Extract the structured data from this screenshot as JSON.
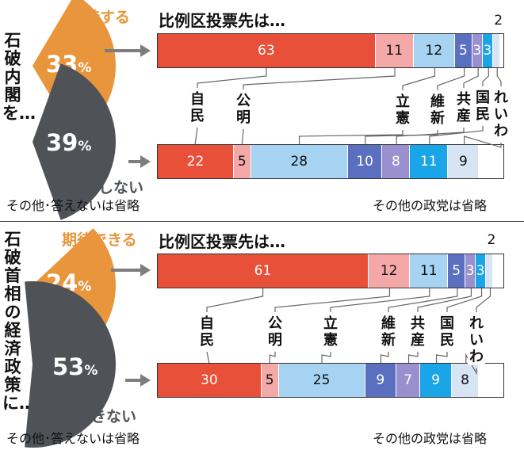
{
  "colors": {
    "support_orange": "#e8953c",
    "nonsupport_gray": "#4f5257",
    "arrow_gray": "#7d7d7d",
    "ldp": "#e8503a",
    "komeito": "#f4a8a8",
    "cdp": "#a6d3f1",
    "ishin": "#5a6fc0",
    "jcp": "#9a8fcf",
    "dpfp": "#1aa5e8",
    "reiwa": "#d6e4f4",
    "other": "#ffffff"
  },
  "panels": [
    {
      "vertical_title": "石破内閣を…",
      "positive": {
        "label": "支持する",
        "value_num": "33",
        "value_unit": "%",
        "share": 0.33
      },
      "negative": {
        "label": "支持しない",
        "value_num": "39",
        "value_unit": "%",
        "share": 0.39
      },
      "chart_title": "比例区投票先は…",
      "note_left": "その他･答えないは省略",
      "note_right": "その他の政党は省略"
    },
    {
      "vertical_title": "石破首相の経済政策に…",
      "positive": {
        "label": "期待できる",
        "value_num": "24",
        "value_unit": "%",
        "share": 0.24
      },
      "negative": {
        "label": "期待できない",
        "value_num": "53",
        "value_unit": "%",
        "share": 0.53
      },
      "chart_title": "比例区投票先は…",
      "note_left": "その他･答えないは省略",
      "note_right": "その他の政党は省略"
    }
  ],
  "chart_data": [
    {
      "type": "bar",
      "stacked": true,
      "orientation": "horizontal",
      "title": "比例区投票先は…",
      "categories": [
        "支持する",
        "支持しない"
      ],
      "parties": [
        "自民",
        "公明",
        "立憲",
        "維新",
        "共産",
        "国民",
        "れいわ"
      ],
      "series": [
        {
          "name": "自民",
          "values": [
            63,
            22
          ]
        },
        {
          "name": "公明",
          "values": [
            11,
            5
          ]
        },
        {
          "name": "立憲",
          "values": [
            12,
            28
          ]
        },
        {
          "name": "維新",
          "values": [
            5,
            10
          ]
        },
        {
          "name": "共産",
          "values": [
            3,
            8
          ]
        },
        {
          "name": "国民",
          "values": [
            3,
            11
          ]
        },
        {
          "name": "れいわ",
          "values": [
            2,
            9
          ]
        }
      ]
    },
    {
      "type": "bar",
      "stacked": true,
      "orientation": "horizontal",
      "title": "比例区投票先は…",
      "categories": [
        "期待できる",
        "期待できない"
      ],
      "parties": [
        "自民",
        "公明",
        "立憲",
        "維新",
        "共産",
        "国民",
        "れいわ"
      ],
      "series": [
        {
          "name": "自民",
          "values": [
            61,
            30
          ]
        },
        {
          "name": "公明",
          "values": [
            12,
            5
          ]
        },
        {
          "name": "立憲",
          "values": [
            11,
            25
          ]
        },
        {
          "name": "維新",
          "values": [
            5,
            9
          ]
        },
        {
          "name": "共産",
          "values": [
            3,
            7
          ]
        },
        {
          "name": "国民",
          "values": [
            3,
            9
          ]
        },
        {
          "name": "れいわ",
          "values": [
            2,
            8
          ]
        }
      ]
    }
  ]
}
